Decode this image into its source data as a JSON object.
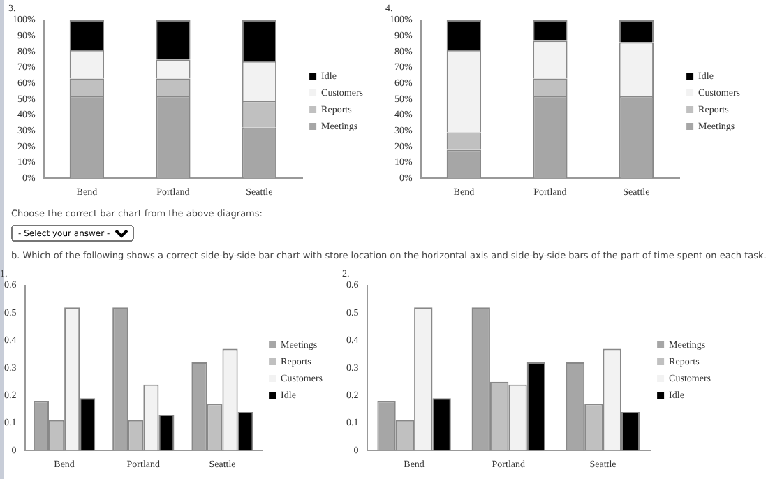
{
  "chart_data": [
    {
      "type": "bar",
      "title": "3.",
      "stacked": true,
      "legend": "right",
      "categories": [
        "Bend",
        "Portland",
        "Seattle"
      ],
      "ylim": [
        0,
        100
      ],
      "yticks": [
        {
          "value": 0,
          "label": "0%"
        },
        {
          "value": 10,
          "label": "10%"
        },
        {
          "value": 20,
          "label": "20%"
        },
        {
          "value": 30,
          "label": "30%"
        },
        {
          "value": 40,
          "label": "40%"
        },
        {
          "value": 50,
          "label": "50%"
        },
        {
          "value": 60,
          "label": "60%"
        },
        {
          "value": 70,
          "label": "70%"
        },
        {
          "value": 80,
          "label": "80%"
        },
        {
          "value": 90,
          "label": "90%"
        },
        {
          "value": 100,
          "label": "100%"
        }
      ],
      "series": [
        {
          "name": "Meetings",
          "color": "#a6a6a6",
          "values": [
            52,
            52,
            32
          ]
        },
        {
          "name": "Reports",
          "color": "#c0c0c0",
          "values": [
            11,
            11,
            17
          ]
        },
        {
          "name": "Customers",
          "color": "#f2f2f2",
          "values": [
            18,
            12,
            25
          ]
        },
        {
          "name": "Idle",
          "color": "#000000",
          "values": [
            19,
            25,
            26
          ]
        }
      ]
    },
    {
      "type": "bar",
      "title": "4.",
      "stacked": true,
      "legend": "right",
      "categories": [
        "Bend",
        "Portland",
        "Seattle"
      ],
      "ylim": [
        0,
        100
      ],
      "yticks": [
        {
          "value": 0,
          "label": "0%"
        },
        {
          "value": 10,
          "label": "10%"
        },
        {
          "value": 20,
          "label": "20%"
        },
        {
          "value": 30,
          "label": "30%"
        },
        {
          "value": 40,
          "label": "40%"
        },
        {
          "value": 50,
          "label": "50%"
        },
        {
          "value": 60,
          "label": "60%"
        },
        {
          "value": 70,
          "label": "70%"
        },
        {
          "value": 80,
          "label": "80%"
        },
        {
          "value": 90,
          "label": "90%"
        },
        {
          "value": 100,
          "label": "100%"
        }
      ],
      "series": [
        {
          "name": "Meetings",
          "color": "#a6a6a6",
          "values": [
            18,
            52,
            52
          ]
        },
        {
          "name": "Reports",
          "color": "#c0c0c0",
          "values": [
            11,
            11,
            0
          ]
        },
        {
          "name": "Customers",
          "color": "#f2f2f2",
          "values": [
            52,
            24,
            34
          ]
        },
        {
          "name": "Idle",
          "color": "#000000",
          "values": [
            19,
            13,
            14
          ]
        }
      ]
    },
    {
      "type": "other",
      "annotations": [
        "Choose the correct bar chart from the above diagrams:",
        "- Select your answer -",
        "b. Which of the following shows a correct side-by-side bar chart with store location on the horizontal axis and side-by-side bars of the part of time spent on each task."
      ]
    },
    {
      "type": "bar",
      "title": "1.",
      "legend": "right",
      "categories": [
        "Bend",
        "Portland",
        "Seattle"
      ],
      "ylim": [
        0,
        0.6
      ],
      "yticks": [
        0,
        0.1,
        0.2,
        0.3,
        0.4,
        0.5,
        0.6
      ],
      "series": [
        {
          "name": "Meetings",
          "color": "#a6a6a6",
          "values": [
            0.18,
            0.52,
            0.32
          ]
        },
        {
          "name": "Reports",
          "color": "#c0c0c0",
          "values": [
            0.11,
            0.11,
            0.17
          ]
        },
        {
          "name": "Customers",
          "color": "#f2f2f2",
          "values": [
            0.52,
            0.24,
            0.37
          ]
        },
        {
          "name": "Idle",
          "color": "#000000",
          "values": [
            0.19,
            0.13,
            0.14
          ]
        }
      ]
    },
    {
      "type": "bar",
      "title": "2.",
      "legend": "right",
      "categories": [
        "Bend",
        "Portland",
        "Seattle"
      ],
      "ylim": [
        0,
        0.6
      ],
      "yticks": [
        0,
        0.1,
        0.2,
        0.3,
        0.4,
        0.5,
        0.6
      ],
      "series": [
        {
          "name": "Meetings",
          "color": "#a6a6a6",
          "values": [
            0.18,
            0.52,
            0.32
          ]
        },
        {
          "name": "Reports",
          "color": "#c0c0c0",
          "values": [
            0.11,
            0.25,
            0.17
          ]
        },
        {
          "name": "Customers",
          "color": "#f2f2f2",
          "values": [
            0.52,
            0.24,
            0.37
          ]
        },
        {
          "name": "Idle",
          "color": "#000000",
          "values": [
            0.19,
            0.32,
            0.14
          ]
        }
      ]
    }
  ]
}
